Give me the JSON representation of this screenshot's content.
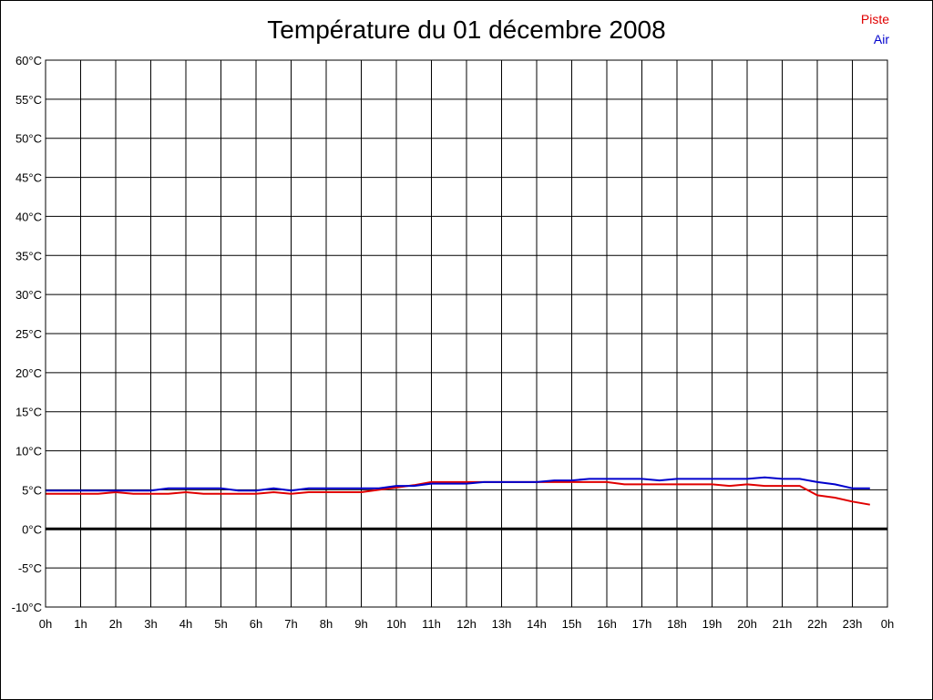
{
  "chart_data": {
    "type": "line",
    "title": "Température du 01 décembre 2008",
    "xlabel": "",
    "ylabel": "",
    "x_ticks": [
      "0h",
      "1h",
      "2h",
      "3h",
      "4h",
      "5h",
      "6h",
      "7h",
      "8h",
      "9h",
      "10h",
      "11h",
      "12h",
      "13h",
      "14h",
      "15h",
      "16h",
      "17h",
      "18h",
      "19h",
      "20h",
      "21h",
      "22h",
      "23h",
      "0h"
    ],
    "y_ticks": [
      "60°C",
      "55°C",
      "50°C",
      "45°C",
      "40°C",
      "35°C",
      "30°C",
      "25°C",
      "20°C",
      "15°C",
      "10°C",
      "5°C",
      "0°C",
      "-5°C",
      "-10°C"
    ],
    "xlim": [
      0,
      24
    ],
    "ylim": [
      -10,
      60
    ],
    "grid": true,
    "legend_position": "top-right",
    "series": [
      {
        "name": "Piste",
        "color": "#e00000",
        "x": [
          0,
          0.5,
          1,
          1.5,
          2,
          2.5,
          3,
          3.5,
          4,
          4.5,
          5,
          5.5,
          6,
          6.5,
          7,
          7.5,
          8,
          8.5,
          9,
          9.5,
          10,
          10.5,
          11,
          11.5,
          12,
          12.5,
          13,
          13.5,
          14,
          14.5,
          15,
          15.5,
          16,
          16.5,
          17,
          17.5,
          18,
          18.5,
          19,
          19.5,
          20,
          20.5,
          21,
          21.5,
          22,
          22.5,
          23,
          23.5
        ],
        "y": [
          4.5,
          4.5,
          4.5,
          4.5,
          4.7,
          4.5,
          4.5,
          4.5,
          4.7,
          4.5,
          4.5,
          4.5,
          4.5,
          4.7,
          4.5,
          4.7,
          4.7,
          4.7,
          4.7,
          5.0,
          5.3,
          5.6,
          6.0,
          6.0,
          6.0,
          6.0,
          6.0,
          6.0,
          6.0,
          6.0,
          6.0,
          6.0,
          6.0,
          5.7,
          5.7,
          5.7,
          5.7,
          5.7,
          5.7,
          5.5,
          5.7,
          5.5,
          5.5,
          5.5,
          4.3,
          4.0,
          3.5,
          3.1
        ]
      },
      {
        "name": "Air",
        "color": "#0000cc",
        "x": [
          0,
          0.5,
          1,
          1.5,
          2,
          2.5,
          3,
          3.5,
          4,
          4.5,
          5,
          5.5,
          6,
          6.5,
          7,
          7.5,
          8,
          8.5,
          9,
          9.5,
          10,
          10.5,
          11,
          11.5,
          12,
          12.5,
          13,
          13.5,
          14,
          14.5,
          15,
          15.5,
          16,
          16.5,
          17,
          17.5,
          18,
          18.5,
          19,
          19.5,
          20,
          20.5,
          21,
          21.5,
          22,
          22.5,
          23,
          23.5
        ],
        "y": [
          4.9,
          4.9,
          4.9,
          4.9,
          4.9,
          4.9,
          4.9,
          5.2,
          5.2,
          5.2,
          5.2,
          4.9,
          4.9,
          5.2,
          4.9,
          5.2,
          5.2,
          5.2,
          5.2,
          5.2,
          5.5,
          5.5,
          5.8,
          5.8,
          5.8,
          6.0,
          6.0,
          6.0,
          6.0,
          6.2,
          6.2,
          6.4,
          6.4,
          6.4,
          6.4,
          6.2,
          6.4,
          6.4,
          6.4,
          6.4,
          6.4,
          6.6,
          6.4,
          6.4,
          6.0,
          5.7,
          5.2,
          5.2
        ]
      }
    ]
  }
}
